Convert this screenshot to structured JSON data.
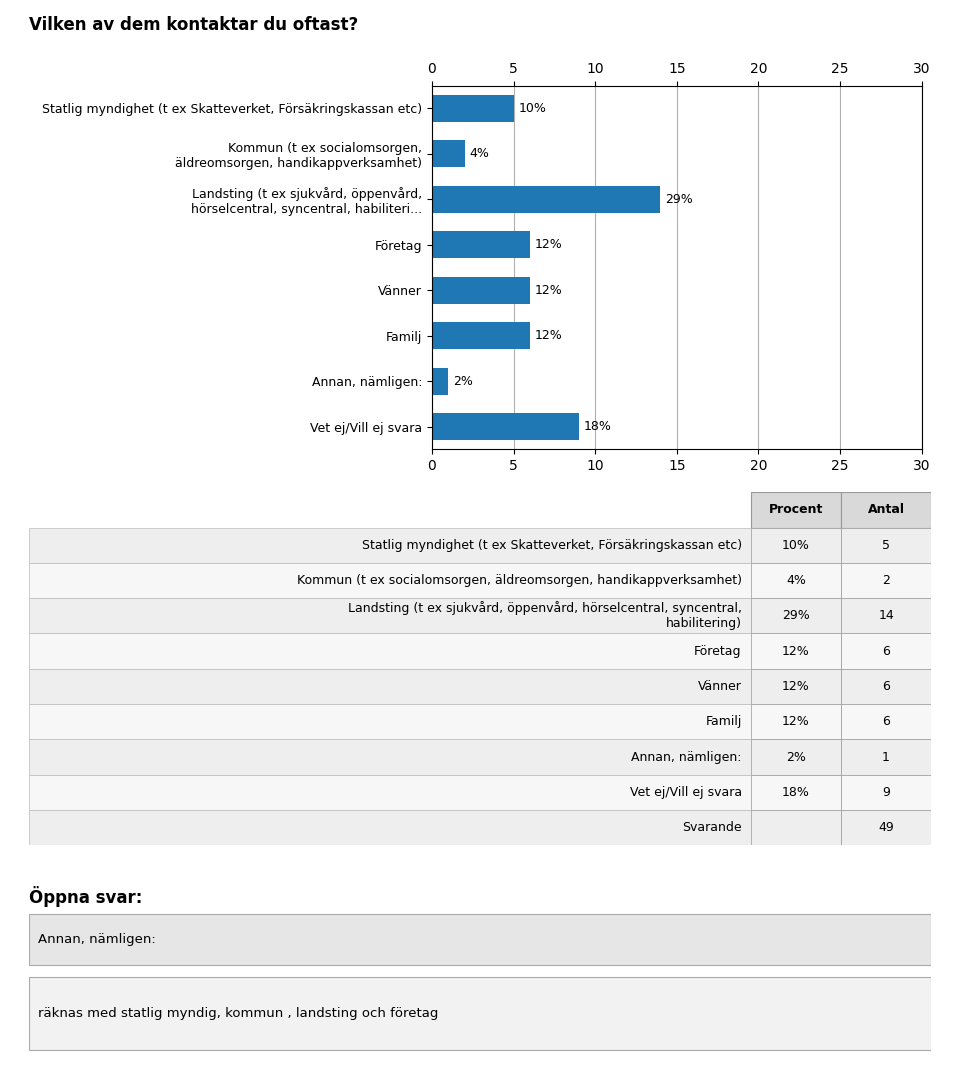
{
  "chart_data": {
    "type": "bar",
    "orientation": "horizontal",
    "title": "Vilken av dem kontaktar du oftast?",
    "categories": [
      "Statlig myndighet (t ex Skatteverket, Försäkringskassan etc)",
      "Kommun (t ex socialomsorgen,\näldreomsorgen, handikappverksamhet)",
      "Landsting (t ex sjukvård, öppenvård,\nhörselcentral, syncentral, habiliteri...",
      "Företag",
      "Vänner",
      "Familj",
      "Annan, nämligen:",
      "Vet ej/Vill ej svara"
    ],
    "values": [
      5,
      2,
      14,
      6,
      6,
      6,
      1,
      9
    ],
    "value_labels": [
      "10%",
      "4%",
      "29%",
      "12%",
      "12%",
      "12%",
      "2%",
      "18%"
    ],
    "data_labels": true,
    "xlim": [
      0,
      30
    ],
    "xticks": [
      0,
      5,
      10,
      15,
      20,
      25,
      30
    ],
    "grid": true,
    "table": {
      "columns": [
        "Procent",
        "Antal"
      ],
      "rows": [
        [
          "Statlig myndighet (t ex Skatteverket, Försäkringskassan etc)",
          "10%",
          "5"
        ],
        [
          "Kommun (t ex socialomsorgen, äldreomsorgen, handikappverksamhet)",
          "4%",
          "2"
        ],
        [
          "Landsting (t ex sjukvård, öppenvård, hörselcentral, syncentral,\nhabilitering)",
          "29%",
          "14"
        ],
        [
          "Företag",
          "12%",
          "6"
        ],
        [
          "Vänner",
          "12%",
          "6"
        ],
        [
          "Familj",
          "12%",
          "6"
        ],
        [
          "Annan, nämligen:",
          "2%",
          "1"
        ],
        [
          "Vet ej/Vill ej svara",
          "18%",
          "9"
        ],
        [
          "Svarande",
          null,
          "49"
        ]
      ]
    },
    "annotations": [
      "Öppna svar:",
      "Annan, nämligen:",
      "räknas med statlig myndig, kommun , landsting och företag"
    ]
  }
}
